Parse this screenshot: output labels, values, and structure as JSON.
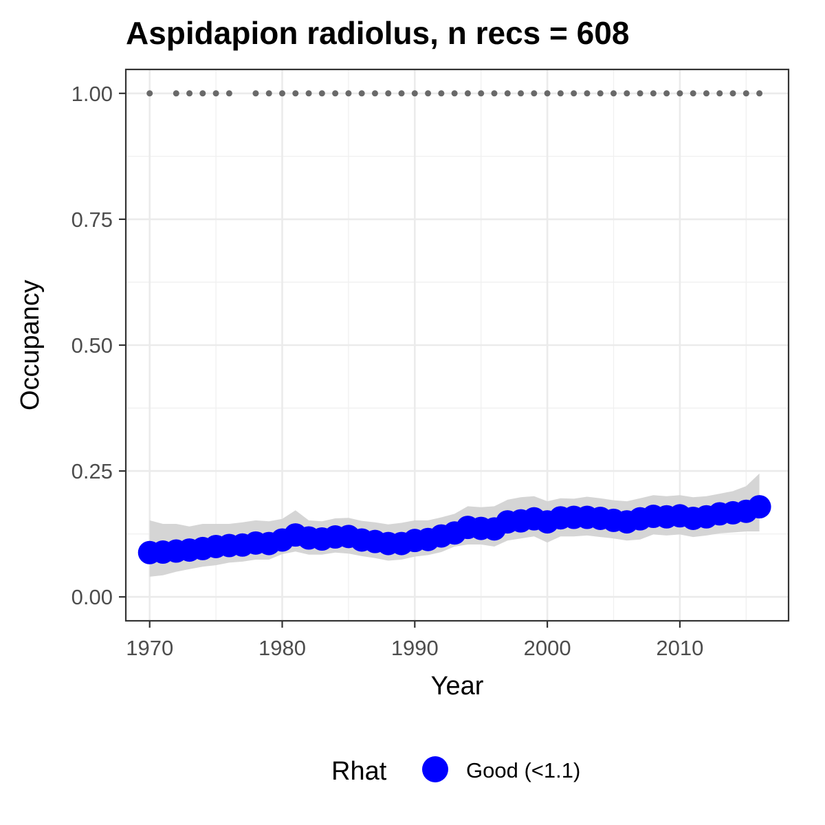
{
  "chart_data": {
    "type": "line",
    "title": "Aspidapion radiolus, n recs = 608",
    "xlabel": "Year",
    "ylabel": "Occupancy",
    "xlim": [
      1968.2,
      2018.2
    ],
    "ylim": [
      -0.0475,
      1.0475
    ],
    "x_ticks": [
      1970,
      1980,
      1990,
      2000,
      2010
    ],
    "x_tick_labels": [
      "1970",
      "1980",
      "1990",
      "2000",
      "2010"
    ],
    "y_ticks": [
      0,
      0.25,
      0.5,
      0.75,
      1
    ],
    "y_tick_labels": [
      "0.00",
      "0.25",
      "0.50",
      "0.75",
      "1.00"
    ],
    "grid": true,
    "legend": {
      "title": "Rhat",
      "position": "bottom",
      "entries": [
        {
          "label": "Good (<1.1)",
          "color": "#0000ff"
        }
      ]
    },
    "series": [
      {
        "kind": "occupancy-mean",
        "color": "#0000ff",
        "x": [
          1970,
          1971,
          1972,
          1973,
          1974,
          1975,
          1976,
          1977,
          1978,
          1979,
          1980,
          1981,
          1982,
          1983,
          1984,
          1985,
          1986,
          1987,
          1988,
          1989,
          1990,
          1991,
          1992,
          1993,
          1994,
          1995,
          1996,
          1997,
          1998,
          1999,
          2000,
          2001,
          2002,
          2003,
          2004,
          2005,
          2006,
          2007,
          2008,
          2009,
          2010,
          2011,
          2012,
          2013,
          2014,
          2015,
          2016
        ],
        "y": [
          0.088,
          0.089,
          0.091,
          0.093,
          0.096,
          0.1,
          0.102,
          0.103,
          0.107,
          0.106,
          0.113,
          0.123,
          0.117,
          0.115,
          0.119,
          0.12,
          0.113,
          0.11,
          0.106,
          0.106,
          0.112,
          0.114,
          0.121,
          0.127,
          0.138,
          0.136,
          0.135,
          0.149,
          0.151,
          0.155,
          0.149,
          0.157,
          0.158,
          0.158,
          0.156,
          0.152,
          0.149,
          0.155,
          0.16,
          0.159,
          0.161,
          0.156,
          0.159,
          0.165,
          0.167,
          0.17,
          0.179
        ]
      },
      {
        "kind": "credible-interval",
        "color": "#d3d3d3",
        "x": [
          1970,
          1971,
          1972,
          1973,
          1974,
          1975,
          1976,
          1977,
          1978,
          1979,
          1980,
          1981,
          1982,
          1983,
          1984,
          1985,
          1986,
          1987,
          1988,
          1989,
          1990,
          1991,
          1992,
          1993,
          1994,
          1995,
          1996,
          1997,
          1998,
          1999,
          2000,
          2001,
          2002,
          2003,
          2004,
          2005,
          2006,
          2007,
          2008,
          2009,
          2010,
          2011,
          2012,
          2013,
          2014,
          2015,
          2016
        ],
        "lower": [
          0.04,
          0.043,
          0.05,
          0.055,
          0.06,
          0.063,
          0.068,
          0.07,
          0.074,
          0.074,
          0.085,
          0.09,
          0.084,
          0.084,
          0.088,
          0.086,
          0.081,
          0.077,
          0.072,
          0.074,
          0.08,
          0.083,
          0.089,
          0.1,
          0.104,
          0.104,
          0.1,
          0.112,
          0.116,
          0.12,
          0.108,
          0.12,
          0.12,
          0.122,
          0.119,
          0.116,
          0.112,
          0.114,
          0.124,
          0.122,
          0.124,
          0.119,
          0.122,
          0.126,
          0.128,
          0.13,
          0.13
        ],
        "upper": [
          0.152,
          0.145,
          0.145,
          0.14,
          0.145,
          0.145,
          0.145,
          0.148,
          0.152,
          0.15,
          0.155,
          0.172,
          0.152,
          0.15,
          0.156,
          0.157,
          0.151,
          0.148,
          0.144,
          0.147,
          0.152,
          0.152,
          0.158,
          0.165,
          0.18,
          0.178,
          0.18,
          0.193,
          0.198,
          0.2,
          0.19,
          0.196,
          0.195,
          0.199,
          0.196,
          0.192,
          0.19,
          0.196,
          0.202,
          0.2,
          0.202,
          0.198,
          0.2,
          0.205,
          0.21,
          0.22,
          0.245
        ]
      },
      {
        "kind": "years-with-records",
        "color": "#696969",
        "x": [
          1970,
          1972,
          1973,
          1974,
          1975,
          1976,
          1978,
          1979,
          1980,
          1981,
          1982,
          1983,
          1984,
          1985,
          1986,
          1987,
          1988,
          1989,
          1990,
          1991,
          1992,
          1993,
          1994,
          1995,
          1996,
          1997,
          1998,
          1999,
          2000,
          2001,
          2002,
          2003,
          2004,
          2005,
          2006,
          2007,
          2008,
          2009,
          2010,
          2011,
          2012,
          2013,
          2014,
          2015,
          2016
        ],
        "y": 1
      }
    ]
  }
}
